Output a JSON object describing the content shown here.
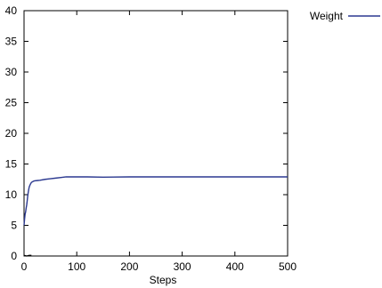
{
  "chart_data": {
    "type": "line",
    "title": "",
    "xlabel": "Steps",
    "ylabel": "",
    "xlim": [
      0,
      500
    ],
    "ylim": [
      0,
      40
    ],
    "x_ticks": [
      0,
      100,
      200,
      300,
      400,
      500
    ],
    "y_ticks": [
      0,
      5,
      10,
      15,
      20,
      25,
      30,
      35,
      40
    ],
    "grid": false,
    "legend_position": "top-right, outside the plot area",
    "series": [
      {
        "name": "Weight",
        "color": "#2b3990",
        "x": [
          0,
          1,
          2,
          3,
          4,
          5,
          6,
          7,
          8,
          9,
          10,
          12,
          14,
          16,
          18,
          20,
          25,
          30,
          40,
          50,
          60,
          70,
          80,
          100,
          120,
          150,
          200,
          250,
          300,
          350,
          400,
          450,
          500
        ],
        "y": [
          5.0,
          6.0,
          6.8,
          7.2,
          7.8,
          8.3,
          9.0,
          9.8,
          10.4,
          10.9,
          11.3,
          11.7,
          12.0,
          12.1,
          12.2,
          12.25,
          12.3,
          12.35,
          12.5,
          12.6,
          12.7,
          12.8,
          12.9,
          12.9,
          12.9,
          12.85,
          12.9,
          12.9,
          12.9,
          12.9,
          12.9,
          12.9,
          12.9
        ]
      },
      {
        "name": "",
        "color": "#000000",
        "x": [
          0,
          5,
          10,
          14
        ],
        "y": [
          0.1,
          0.0,
          0.1,
          0.1
        ]
      }
    ]
  }
}
